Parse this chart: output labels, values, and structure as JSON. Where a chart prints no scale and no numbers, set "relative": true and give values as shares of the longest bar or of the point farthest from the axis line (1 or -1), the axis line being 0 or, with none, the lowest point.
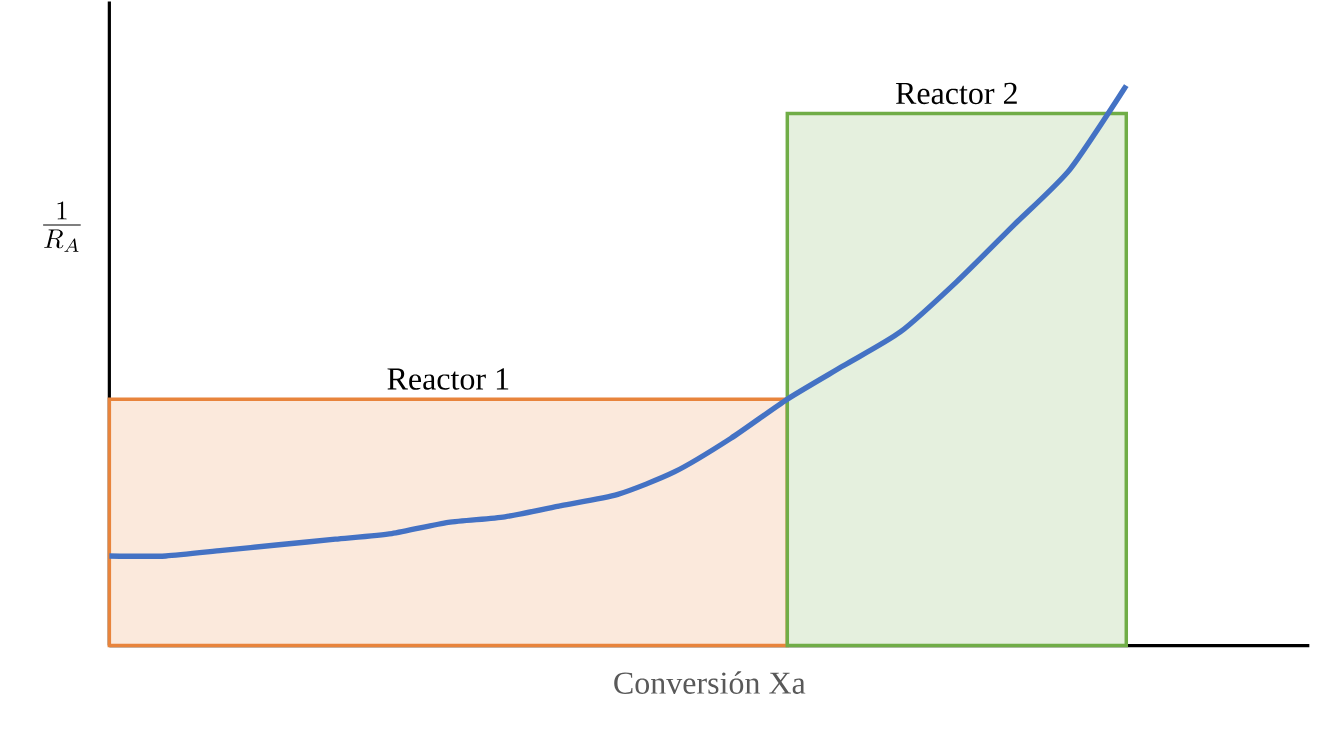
{
  "chart_data": {
    "type": "line",
    "relative": true,
    "xlabel": "Conversión Xa",
    "ylabel": "\\frac{1}{R_{A}}",
    "categories": [
      null,
      null,
      null,
      null,
      null,
      null,
      null,
      null,
      null,
      null,
      null,
      null,
      null,
      null,
      null,
      null,
      null,
      null,
      null
    ],
    "series": [
      {
        "name": "Reactor 1",
        "type": "area",
        "color": "#e8843c",
        "values": [
          0.44,
          0.44,
          0.44,
          0.44,
          0.44,
          0.44,
          0.44,
          0.44,
          0.44,
          0.44,
          0.44,
          0.44,
          0.44,
          null,
          null,
          null,
          null,
          null,
          null
        ]
      },
      {
        "name": "Reactor 2",
        "type": "area",
        "color": "#70ad47",
        "values": [
          null,
          null,
          null,
          null,
          null,
          null,
          null,
          null,
          null,
          null,
          null,
          null,
          0.95,
          0.95,
          0.95,
          0.95,
          0.95,
          0.95,
          0.95
        ]
      },
      {
        "color": "#4472c4",
        "values": [
          0.16,
          0.16,
          0.17,
          0.18,
          0.19,
          0.2,
          0.22,
          0.23,
          0.25,
          0.27,
          0.31,
          0.37,
          0.44,
          0.5,
          0.56,
          0.65,
          0.75,
          0.85,
          1.0
        ]
      }
    ]
  }
}
